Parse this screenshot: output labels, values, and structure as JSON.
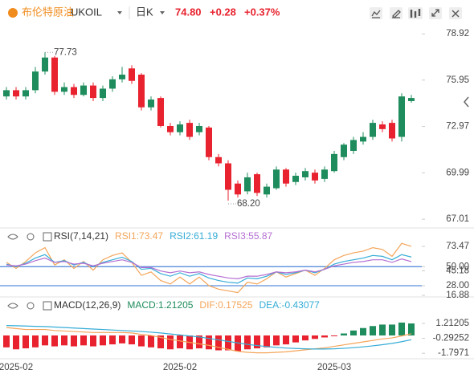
{
  "header": {
    "name": "布伦特原油",
    "symbol": "UKOIL",
    "period": "日K",
    "price": "74.80",
    "change": "+0.28",
    "change_pct": "+0.37%"
  },
  "chart_data": [
    {
      "type": "candlestick",
      "categories": [
        null,
        "2025-02",
        null,
        null,
        null,
        null,
        null,
        null,
        null,
        null,
        null,
        null,
        null,
        null,
        null,
        null,
        null,
        null,
        "2025-02",
        null,
        null,
        null,
        null,
        null,
        null,
        null,
        null,
        null,
        null,
        null,
        null,
        null,
        null,
        null,
        "2025-03",
        null,
        null,
        null,
        null,
        null,
        null,
        null,
        null
      ],
      "open": [
        74.9,
        75.3,
        74.9,
        75.3,
        76.5,
        77.4,
        75.2,
        75.5,
        75.0,
        75.6,
        74.8,
        75.4,
        76.0,
        76.7,
        76.3,
        74.2,
        74.8,
        73.0,
        72.6,
        73.2,
        72.6,
        72.9,
        71.0,
        70.6,
        69.3,
        68.8,
        69.9,
        68.6,
        69.0,
        70.2,
        69.4,
        69.7,
        70.0,
        69.6,
        70.1,
        71.0,
        71.4,
        72.0,
        72.3,
        73.1,
        73.2,
        72.3,
        74.6
      ],
      "high": [
        75.5,
        75.5,
        75.5,
        76.8,
        77.73,
        77.5,
        75.8,
        75.7,
        75.8,
        75.8,
        75.6,
        76.2,
        76.8,
        76.9,
        76.4,
        74.9,
        74.9,
        73.2,
        73.3,
        73.4,
        73.2,
        73.0,
        71.2,
        70.8,
        69.5,
        70.0,
        70.0,
        69.3,
        70.4,
        70.3,
        70.0,
        70.3,
        70.2,
        70.4,
        71.4,
        71.9,
        72.3,
        72.6,
        73.4,
        73.3,
        73.4,
        75.1,
        75.0
      ],
      "low": [
        74.7,
        74.7,
        74.7,
        75.1,
        76.3,
        75.0,
        75.0,
        74.8,
        74.9,
        74.6,
        74.6,
        75.2,
        75.8,
        75.7,
        74.0,
        74.0,
        72.9,
        72.4,
        72.4,
        72.1,
        72.4,
        70.8,
        70.4,
        68.2,
        68.4,
        68.6,
        68.5,
        68.4,
        68.9,
        69.1,
        69.2,
        69.5,
        69.3,
        69.4,
        70.0,
        70.8,
        71.2,
        71.8,
        72.1,
        72.6,
        72.0,
        72.0,
        74.5
      ],
      "close": [
        75.3,
        74.9,
        75.3,
        76.5,
        77.4,
        75.2,
        75.5,
        75.0,
        75.6,
        74.8,
        75.4,
        76.0,
        76.3,
        75.9,
        74.2,
        74.7,
        73.0,
        72.6,
        73.1,
        72.3,
        73.0,
        71.0,
        70.6,
        68.9,
        68.6,
        69.7,
        68.7,
        69.1,
        70.2,
        69.3,
        69.8,
        70.1,
        69.5,
        70.2,
        71.2,
        71.8,
        72.1,
        72.3,
        73.2,
        72.8,
        72.2,
        74.9,
        74.8
      ],
      "up_color": "#1e8c5c",
      "down_color": "#e8222e",
      "ylim": [
        66.5,
        79.55
      ],
      "yticks": [
        78.92,
        75.95,
        72.97,
        69.99,
        67.01
      ],
      "annotations": [
        {
          "value": 77.73,
          "label": "77.73"
        },
        {
          "value": 68.2,
          "label": "68.20"
        }
      ]
    },
    {
      "type": "line",
      "title": "RSI(7,14,21)",
      "series": [
        {
          "name": "RSI1:73.47",
          "color": "#f4a55a",
          "values": [
            55,
            48,
            56,
            66,
            72,
            52,
            58,
            48,
            56,
            46,
            58,
            63,
            66,
            55,
            40,
            44,
            34,
            30,
            38,
            30,
            38,
            28,
            24,
            22,
            20,
            32,
            30,
            36,
            44,
            38,
            42,
            46,
            40,
            48,
            58,
            63,
            66,
            68,
            72,
            70,
            62,
            77,
            73.47
          ]
        },
        {
          "name": "RSI2:61.19",
          "color": "#35acd6",
          "values": [
            53,
            50,
            54,
            60,
            64,
            55,
            57,
            52,
            55,
            50,
            55,
            58,
            61,
            56,
            47,
            48,
            42,
            39,
            43,
            39,
            42,
            37,
            34,
            32,
            31,
            37,
            36,
            39,
            44,
            41,
            43,
            46,
            43,
            47,
            53,
            56,
            58,
            60,
            63,
            62,
            58,
            64,
            61.19
          ]
        },
        {
          "name": "RSI3:55.87",
          "color": "#b46fd2",
          "values": [
            52,
            51,
            53,
            57,
            60,
            55,
            56,
            53,
            54,
            51,
            54,
            56,
            58,
            55,
            49,
            49,
            45,
            43,
            45,
            43,
            44,
            41,
            39,
            37,
            36,
            39,
            39,
            41,
            44,
            43,
            44,
            46,
            44,
            47,
            51,
            53,
            55,
            56,
            58,
            58,
            55,
            59,
            55.87
          ]
        }
      ],
      "ylim": [
        15,
        80
      ],
      "yticks": [
        73.47,
        {
          "value": 50,
          "label": "50.00"
        },
        45.18,
        16.88,
        {
          "value": 28,
          "label": "28.00"
        }
      ],
      "levels": [
        50,
        28
      ],
      "level_color": "#5a8fdc"
    },
    {
      "type": "macd",
      "title": "MACD(12,26,9)",
      "series": [
        {
          "name": "MACD:1.21205",
          "up_color": "#1e8c5c",
          "down_color": "#e8222e",
          "values": [
            -1.2,
            -1.4,
            -1.3,
            -1.2,
            -1.0,
            -1.1,
            -1.0,
            -1.1,
            -1.0,
            -1.1,
            -1.0,
            -0.9,
            -0.8,
            -0.9,
            -1.1,
            -1.2,
            -1.3,
            -1.4,
            -1.3,
            -1.4,
            -1.3,
            -1.4,
            -1.5,
            -1.5,
            -1.6,
            -1.4,
            -1.3,
            -1.2,
            -1.0,
            -0.9,
            -0.7,
            -0.5,
            -0.35,
            -0.2,
            -0.05,
            0.2,
            0.5,
            0.75,
            0.95,
            1.1,
            1.1,
            1.3,
            1.21205
          ]
        },
        {
          "name": "DIF:0.17525",
          "color": "#f4a55a",
          "values": [
            0.8,
            0.7,
            0.6,
            0.6,
            0.6,
            0.5,
            0.45,
            0.4,
            0.35,
            0.3,
            0.3,
            0.3,
            0.3,
            0.25,
            0.1,
            0.0,
            -0.2,
            -0.4,
            -0.55,
            -0.7,
            -0.85,
            -1.0,
            -1.2,
            -1.4,
            -1.6,
            -1.7,
            -1.75,
            -1.75,
            -1.7,
            -1.65,
            -1.55,
            -1.45,
            -1.35,
            -1.25,
            -1.1,
            -0.95,
            -0.8,
            -0.65,
            -0.5,
            -0.35,
            -0.25,
            -0.05,
            0.17525
          ]
        },
        {
          "name": "DEA:-0.43077",
          "color": "#35acd6",
          "values": [
            1.0,
            0.98,
            0.95,
            0.92,
            0.9,
            0.85,
            0.8,
            0.75,
            0.7,
            0.65,
            0.6,
            0.55,
            0.5,
            0.45,
            0.4,
            0.33,
            0.25,
            0.15,
            0.05,
            -0.05,
            -0.15,
            -0.3,
            -0.45,
            -0.6,
            -0.75,
            -0.9,
            -1.02,
            -1.12,
            -1.2,
            -1.27,
            -1.32,
            -1.35,
            -1.37,
            -1.37,
            -1.35,
            -1.3,
            -1.23,
            -1.15,
            -1.05,
            -0.93,
            -0.8,
            -0.63,
            -0.43077
          ]
        }
      ],
      "ylim": [
        -2.35,
        3.24
      ],
      "yticks": [
        1.21205,
        -0.29252,
        -1.7971
      ]
    }
  ]
}
